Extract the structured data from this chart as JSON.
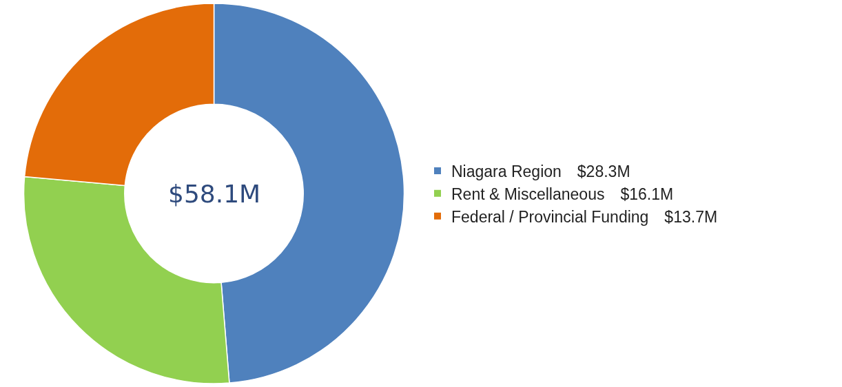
{
  "chart_data": {
    "type": "donut",
    "categories": [
      "Niagara Region",
      "Rent & Miscellaneous",
      "Federal / Provincial Funding"
    ],
    "values": [
      28.3,
      16.1,
      13.7
    ],
    "value_labels": [
      "$28.3M",
      "$16.1M",
      "$13.7M"
    ],
    "colors": [
      "#4f81bd",
      "#92d050",
      "#e36c09"
    ],
    "annotations": [
      "$58.1M"
    ],
    "legend": "right"
  }
}
